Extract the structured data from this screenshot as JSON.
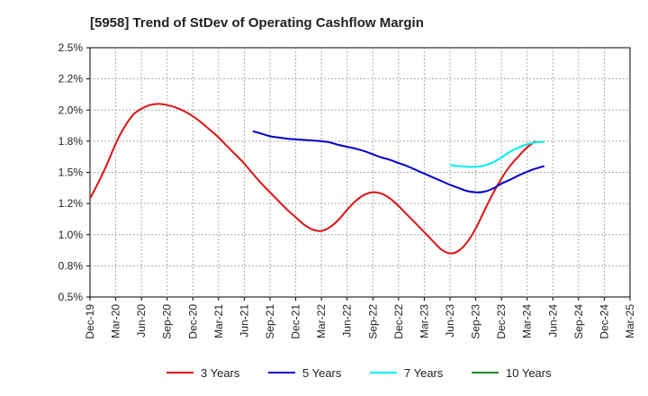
{
  "chart_data": {
    "type": "line",
    "title": "[5958]  Trend of StDev of Operating Cashflow Margin",
    "xlabel": "",
    "ylabel": "",
    "x_categories": [
      "Dec-19",
      "Mar-20",
      "Jun-20",
      "Sep-20",
      "Dec-20",
      "Mar-21",
      "Jun-21",
      "Sep-21",
      "Dec-21",
      "Mar-22",
      "Jun-22",
      "Sep-22",
      "Dec-22",
      "Mar-23",
      "Jun-23",
      "Sep-23",
      "Dec-23",
      "Mar-24",
      "Jun-24",
      "Sep-24",
      "Dec-24",
      "Mar-25"
    ],
    "ylim": [
      0.5,
      2.5
    ],
    "y_ticks": [
      0.5,
      0.75,
      1.0,
      1.25,
      1.5,
      1.75,
      2.0,
      2.25,
      2.5
    ],
    "y_tick_labels": [
      "0.5%",
      "0.8%",
      "1.0%",
      "1.2%",
      "1.5%",
      "1.8%",
      "2.0%",
      "2.2%",
      "2.5%"
    ],
    "grid": true,
    "legend_position": "bottom",
    "series": [
      {
        "name": "3 Years",
        "color": "#dd1111",
        "points": [
          [
            0,
            1.29
          ],
          [
            0.33,
            1.42
          ],
          [
            0.67,
            1.57
          ],
          [
            1,
            1.73
          ],
          [
            1.33,
            1.86
          ],
          [
            1.67,
            1.96
          ],
          [
            2,
            2.01
          ],
          [
            2.33,
            2.04
          ],
          [
            2.67,
            2.05
          ],
          [
            3,
            2.04
          ],
          [
            3.33,
            2.02
          ],
          [
            3.67,
            1.99
          ],
          [
            4,
            1.95
          ],
          [
            4.33,
            1.9
          ],
          [
            4.67,
            1.84
          ],
          [
            5,
            1.78
          ],
          [
            5.33,
            1.71
          ],
          [
            5.67,
            1.64
          ],
          [
            6,
            1.57
          ],
          [
            6.33,
            1.49
          ],
          [
            6.67,
            1.41
          ],
          [
            7,
            1.34
          ],
          [
            7.33,
            1.27
          ],
          [
            7.67,
            1.2
          ],
          [
            8,
            1.14
          ],
          [
            8.33,
            1.08
          ],
          [
            8.67,
            1.04
          ],
          [
            9,
            1.03
          ],
          [
            9.33,
            1.06
          ],
          [
            9.67,
            1.12
          ],
          [
            10,
            1.2
          ],
          [
            10.33,
            1.27
          ],
          [
            10.67,
            1.32
          ],
          [
            11,
            1.34
          ],
          [
            11.33,
            1.33
          ],
          [
            11.67,
            1.29
          ],
          [
            12,
            1.23
          ],
          [
            12.33,
            1.16
          ],
          [
            12.67,
            1.09
          ],
          [
            13,
            1.02
          ],
          [
            13.33,
            0.95
          ],
          [
            13.67,
            0.88
          ],
          [
            14,
            0.85
          ],
          [
            14.33,
            0.87
          ],
          [
            14.67,
            0.94
          ],
          [
            15,
            1.05
          ],
          [
            15.33,
            1.19
          ],
          [
            15.67,
            1.33
          ],
          [
            16,
            1.45
          ],
          [
            16.33,
            1.55
          ],
          [
            16.67,
            1.63
          ],
          [
            17,
            1.7
          ],
          [
            17.33,
            1.75
          ]
        ]
      },
      {
        "name": "5 Years",
        "color": "#0000cc",
        "points": [
          [
            6.33,
            1.83
          ],
          [
            6.67,
            1.81
          ],
          [
            7,
            1.79
          ],
          [
            7.33,
            1.78
          ],
          [
            7.67,
            1.77
          ],
          [
            8,
            1.765
          ],
          [
            8.33,
            1.76
          ],
          [
            8.67,
            1.755
          ],
          [
            9,
            1.75
          ],
          [
            9.33,
            1.74
          ],
          [
            9.67,
            1.72
          ],
          [
            10,
            1.705
          ],
          [
            10.33,
            1.69
          ],
          [
            10.67,
            1.67
          ],
          [
            11,
            1.645
          ],
          [
            11.33,
            1.62
          ],
          [
            11.67,
            1.6
          ],
          [
            12,
            1.575
          ],
          [
            12.33,
            1.55
          ],
          [
            12.67,
            1.52
          ],
          [
            13,
            1.49
          ],
          [
            13.33,
            1.46
          ],
          [
            13.67,
            1.43
          ],
          [
            14,
            1.4
          ],
          [
            14.33,
            1.375
          ],
          [
            14.67,
            1.35
          ],
          [
            15,
            1.34
          ],
          [
            15.33,
            1.345
          ],
          [
            15.67,
            1.37
          ],
          [
            16,
            1.41
          ],
          [
            16.33,
            1.44
          ],
          [
            16.67,
            1.475
          ],
          [
            17,
            1.505
          ],
          [
            17.33,
            1.53
          ],
          [
            17.67,
            1.55
          ]
        ]
      },
      {
        "name": "7 Years",
        "color": "#00eeee",
        "points": [
          [
            14,
            1.56
          ],
          [
            14.33,
            1.55
          ],
          [
            14.67,
            1.545
          ],
          [
            15,
            1.545
          ],
          [
            15.33,
            1.555
          ],
          [
            15.67,
            1.58
          ],
          [
            16,
            1.62
          ],
          [
            16.33,
            1.665
          ],
          [
            16.67,
            1.7
          ],
          [
            17,
            1.725
          ],
          [
            17.33,
            1.74
          ],
          [
            17.67,
            1.745
          ]
        ]
      },
      {
        "name": "10 Years",
        "color": "#228822",
        "points": []
      }
    ]
  }
}
